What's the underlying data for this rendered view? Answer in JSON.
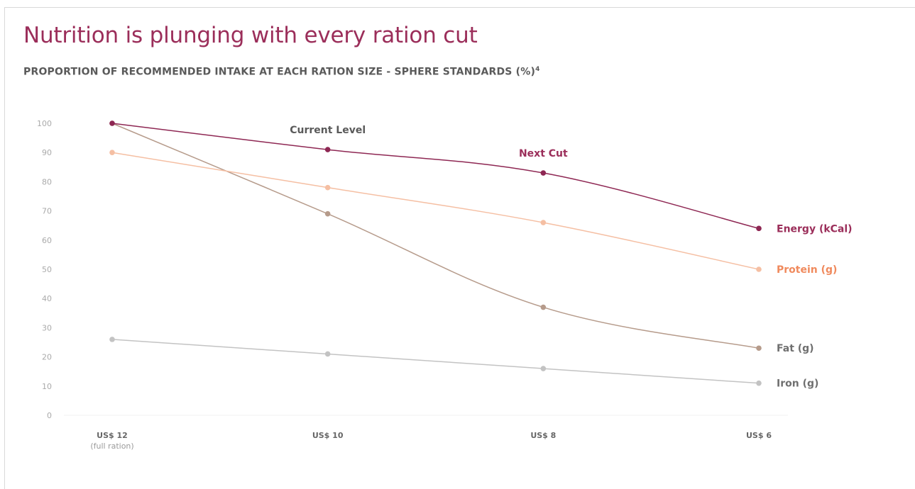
{
  "title": "Nutrition is plunging with every ration cut",
  "subtitle": "PROPORTION OF RECOMMENDED INTAKE AT EACH RATION SIZE - SPHERE STANDARDS (%)",
  "subtitle_footnote": "4",
  "chart_data": {
    "type": "line",
    "title": "Nutrition is plunging with every ration cut",
    "subtitle": "PROPORTION OF RECOMMENDED INTAKE AT EACH RATION SIZE - SPHERE STANDARDS (%)",
    "categories": [
      "US$ 12",
      "US$ 10",
      "US$ 8",
      "US$ 6"
    ],
    "category_sublabels": [
      "(full ration)",
      "",
      "",
      ""
    ],
    "ylim": [
      0,
      100
    ],
    "yticks": [
      0,
      10,
      20,
      30,
      40,
      50,
      60,
      70,
      80,
      90,
      100
    ],
    "grid": false,
    "legend": "end-of-line labels",
    "series": [
      {
        "name": "Energy (kCal)",
        "values": [
          100,
          91,
          83,
          64
        ],
        "color": "#8e2753",
        "label_color": "#9b2e5a"
      },
      {
        "name": "Protein (g)",
        "values": [
          90,
          78,
          66,
          50
        ],
        "color": "#f5bfa3",
        "label_color": "#f08a5d"
      },
      {
        "name": "Fat (g)",
        "values": [
          100,
          69,
          37,
          23
        ],
        "color": "#b69b8b",
        "label_color": "#6f6f6f"
      },
      {
        "name": "Iron (g)",
        "values": [
          26,
          21,
          16,
          11
        ],
        "color": "#c3c3c3",
        "label_color": "#6f6f6f"
      }
    ],
    "annotations": [
      {
        "text": "Current Level",
        "category": "US$ 10",
        "color": "#5a5a5a"
      },
      {
        "text": "Next Cut",
        "category": "US$ 8",
        "color": "#9b2e5a"
      }
    ]
  }
}
